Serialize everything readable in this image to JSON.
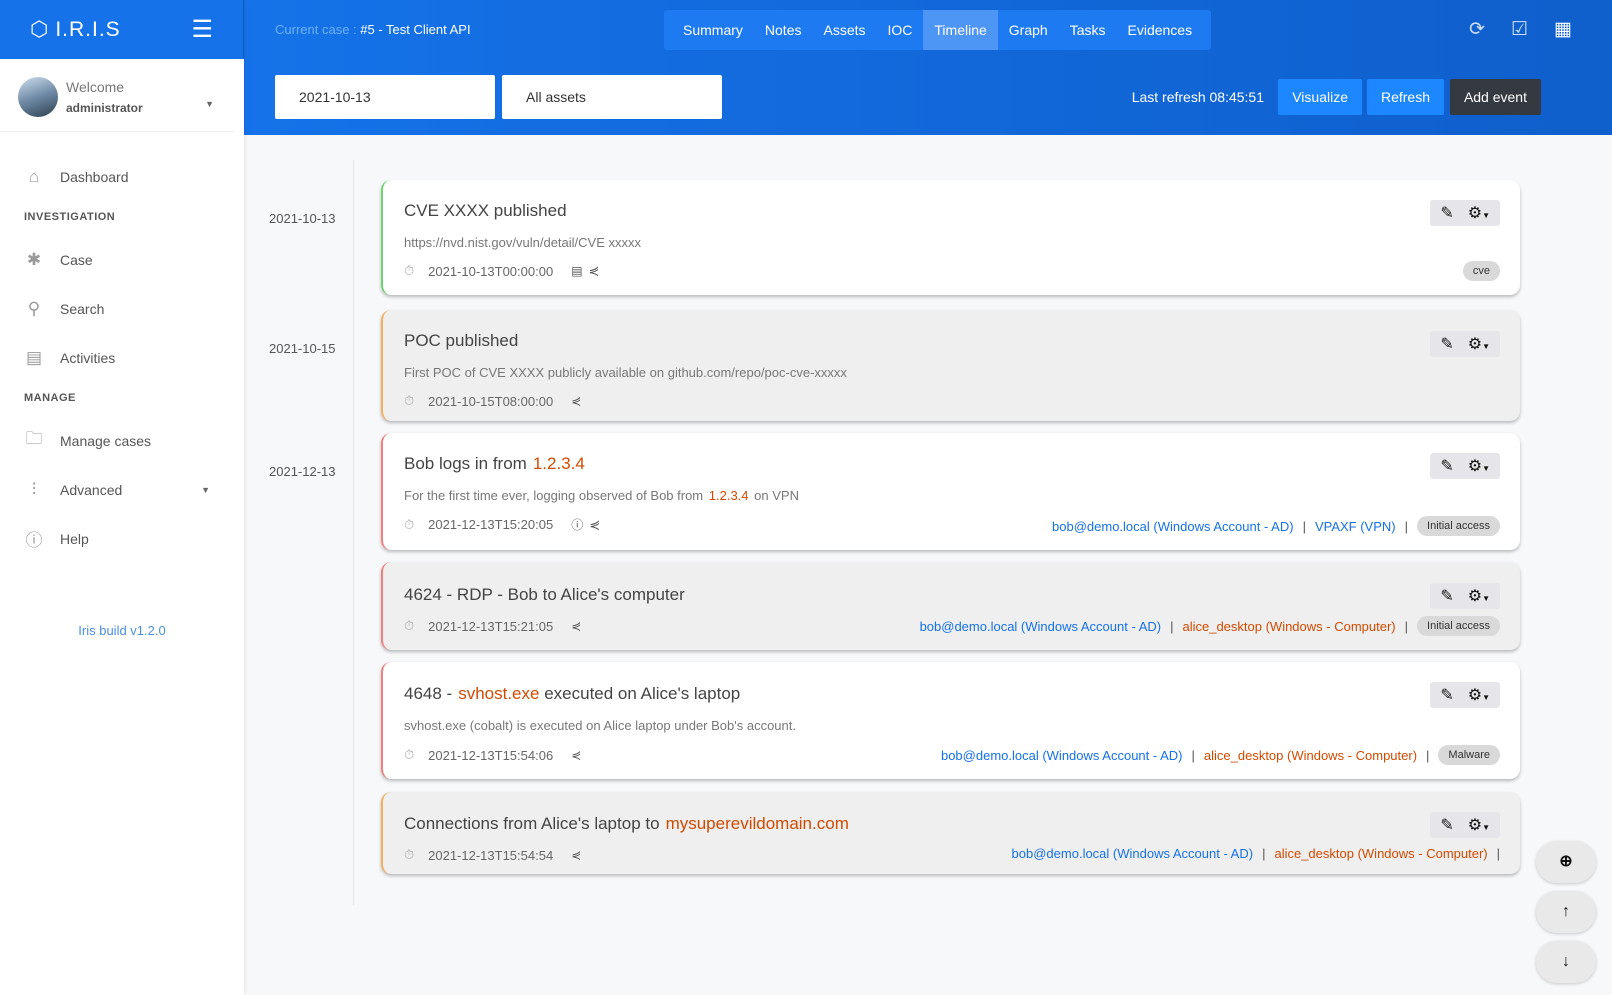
{
  "app": {
    "name": "I.R.I.S",
    "build": "Iris build v1.2.0"
  },
  "user": {
    "welcome": "Welcome",
    "name": "administrator"
  },
  "nav": {
    "dashboard": "Dashboard",
    "investigation": "INVESTIGATION",
    "case": "Case",
    "search": "Search",
    "activities": "Activities",
    "manage": "MANAGE",
    "manage_cases": "Manage cases",
    "advanced": "Advanced",
    "help": "Help"
  },
  "header": {
    "case_label": "Current case : ",
    "case_value": "#5 - Test Client API",
    "tabs": [
      "Summary",
      "Notes",
      "Assets",
      "IOC",
      "Timeline",
      "Graph",
      "Tasks",
      "Evidences"
    ],
    "active_tab": "Timeline"
  },
  "toolbar": {
    "date_filter": "2021-10-13",
    "asset_filter": "All assets",
    "last_refresh": "Last refresh 08:45:51",
    "visualize": "Visualize",
    "refresh": "Refresh",
    "add_event": "Add event"
  },
  "dates": [
    "2021-10-13",
    "2021-10-15",
    "2021-12-13"
  ],
  "events": [
    {
      "title": "CVE XXXX published",
      "highlight": "",
      "desc": "https://nvd.nist.gov/vuln/detail/CVE xxxxx",
      "time": "2021-10-13T00:00:00",
      "color": "#6fd46f",
      "assets": [],
      "tag": "cve"
    },
    {
      "title": "POC published",
      "highlight": "",
      "desc": "First POC of CVE XXXX publicly available on github.com/repo/poc-cve-xxxxx",
      "time": "2021-10-15T08:00:00",
      "color": "#f0b060",
      "assets": [],
      "tag": ""
    },
    {
      "title": "Bob logs in from",
      "highlight": "1.2.3.4",
      "desc": "For the first time ever, logging observed of Bob from",
      "desc_hl": "1.2.3.4",
      "desc_tail": "on VPN",
      "time": "2021-12-13T15:20:05",
      "color": "#f08080",
      "assets": [
        "bob@demo.local (Windows Account - AD)",
        "VPAXF (VPN)"
      ],
      "tag": "Initial access"
    },
    {
      "title": "4624 - RDP - Bob to Alice's computer",
      "highlight": "",
      "desc": "",
      "time": "2021-12-13T15:21:05",
      "color": "#f08080",
      "assets": [
        "bob@demo.local (Windows Account - AD)",
        "alice_desktop (Windows - Computer)"
      ],
      "tag": "Initial access"
    },
    {
      "title": "4648 -",
      "highlight": "svhost.exe",
      "title_tail": "executed on Alice's laptop",
      "desc": "svhost.exe (cobalt) is executed on Alice laptop under Bob's account.",
      "time": "2021-12-13T15:54:06",
      "color": "#f08080",
      "assets": [
        "bob@demo.local (Windows Account - AD)",
        "alice_desktop (Windows - Computer)"
      ],
      "tag": "Malware"
    },
    {
      "title": "Connections from Alice's laptop to",
      "highlight": "mysuperevildomain.com",
      "desc": "",
      "time": "2021-12-13T15:54:54",
      "color": "#f0b060",
      "assets": [
        "bob@demo.local (Windows Account - AD)",
        "alice_desktop (Windows - Computer)"
      ],
      "tag": ""
    }
  ]
}
